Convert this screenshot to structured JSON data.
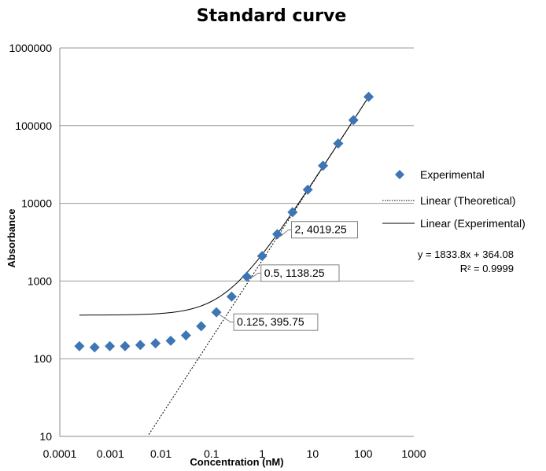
{
  "chart_data": {
    "type": "scatter",
    "title": "Standard curve",
    "xlabel": "Concentration (nM)",
    "ylabel": "Absorbance",
    "xscale": "log",
    "yscale": "log",
    "xlim": [
      0.0001,
      1000
    ],
    "ylim": [
      10,
      1000000
    ],
    "x_ticks": [
      "0.0001",
      "0.001",
      "0.01",
      "0.1",
      "1",
      "10",
      "100",
      "1000"
    ],
    "y_ticks": [
      "10",
      "100",
      "1000",
      "10000",
      "100000",
      "1000000"
    ],
    "grid": "horizontal",
    "series": [
      {
        "name": "Experimental",
        "marker": "diamond",
        "color": "#3d75b5",
        "x": [
          0.000244,
          0.000488,
          0.000977,
          0.00195,
          0.00391,
          0.00781,
          0.0156,
          0.03125,
          0.0625,
          0.125,
          0.25,
          0.5,
          1,
          2,
          4,
          8,
          16,
          32,
          64,
          128
        ],
        "y": [
          145,
          140,
          145,
          145,
          150,
          158,
          170,
          200,
          262,
          395.75,
          630,
          1138.25,
          2100,
          4019.25,
          7700,
          15000,
          30500,
          59000,
          118000,
          235000
        ]
      }
    ],
    "trendlines": [
      {
        "name": "Linear (Theoretical)",
        "style": "dotted",
        "color": "#000000",
        "slope": 1833.8,
        "intercept": 0
      },
      {
        "name": "Linear (Experimental)",
        "style": "solid",
        "color": "#000000",
        "slope": 1833.8,
        "intercept": 364.08
      }
    ],
    "equation": "y = 1833.8x + 364.08",
    "r_squared": "R² = 0.9999",
    "data_labels": [
      {
        "x": 0.125,
        "y": 395.75,
        "text": "0.125, 395.75"
      },
      {
        "x": 0.5,
        "y": 1138.25,
        "text": "0.5, 1138.25"
      },
      {
        "x": 2,
        "y": 4019.25,
        "text": "2, 4019.25"
      }
    ],
    "legend_position": "right"
  }
}
